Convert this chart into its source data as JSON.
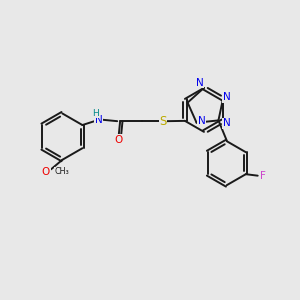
{
  "bg_color": "#e8e8e8",
  "bond_color": "#1a1a1a",
  "bond_width": 1.4,
  "N_color": "#0000ee",
  "O_color": "#ee0000",
  "S_color": "#bbaa00",
  "F_color": "#cc44cc",
  "H_color": "#008888",
  "figsize": [
    3.0,
    3.0
  ],
  "dpi": 100,
  "xlim": [
    0,
    10
  ],
  "ylim": [
    0,
    10
  ]
}
